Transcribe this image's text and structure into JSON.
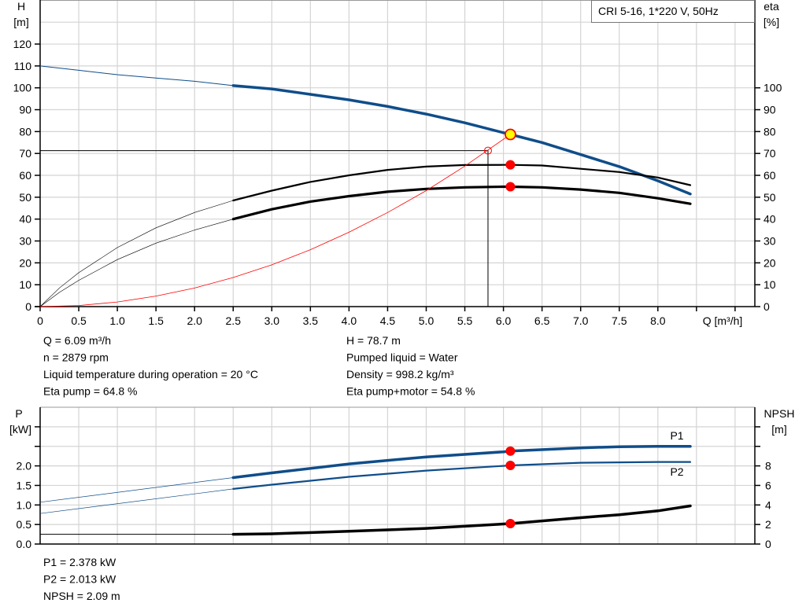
{
  "legend_box": "CRI 5-16, 1*220 V, 50Hz",
  "info_top": {
    "left": [
      "Q = 6.09 m³/h",
      "n = 2879 rpm",
      "Liquid temperature during operation = 20 °C",
      "Eta pump = 64.8 %"
    ],
    "right": [
      "H = 78.7 m",
      "Pumped liquid = Water",
      "Density = 998.2 kg/m³",
      "Eta pump+motor = 54.8 %"
    ]
  },
  "info_bottom": [
    "P1 = 2.378 kW",
    "P2 = 2.013 kW",
    "NPSH = 2.09 m"
  ],
  "colors": {
    "blue": "#0f4d8a",
    "black": "#000000",
    "red": "#ff0000",
    "yellow": "#ffff00",
    "grid": "#d4d4d4"
  },
  "chart_data": [
    {
      "type": "line",
      "xlabel": "Q [m³/h]",
      "ylabel_left": [
        "H",
        "[m]"
      ],
      "ylabel_right": [
        "eta",
        "[%]"
      ],
      "xlim": [
        0,
        9.26
      ],
      "ylim": [
        0,
        140
      ],
      "x_ticks": [
        "0",
        "0.5",
        "1.0",
        "1.5",
        "2.0",
        "2.5",
        "3.0",
        "3.5",
        "4.0",
        "4.5",
        "5.0",
        "5.5",
        "6.0",
        "6.5",
        "7.0",
        "7.5",
        "8.0"
      ],
      "y_ticks_left": [
        "0",
        "10",
        "20",
        "30",
        "40",
        "50",
        "60",
        "70",
        "80",
        "90",
        "100",
        "110",
        "120"
      ],
      "y_ticks_right": [
        "0",
        "10",
        "20",
        "30",
        "40",
        "50",
        "60",
        "70",
        "80",
        "90",
        "100"
      ],
      "grid": true,
      "operating_range_start_q": 2.5,
      "series": [
        {
          "key": "head",
          "axis": "left",
          "color": "#0f4d8a",
          "x": [
            0,
            0.5,
            1,
            1.5,
            2,
            2.5,
            3,
            3.5,
            4,
            4.5,
            5,
            5.5,
            6,
            6.09,
            6.5,
            7,
            7.5,
            8,
            8.42
          ],
          "y": [
            110,
            108,
            106,
            104.5,
            103,
            101,
            99.5,
            97,
            94.5,
            91.5,
            88,
            84,
            79.5,
            78.7,
            75,
            69.5,
            64,
            57.5,
            51.5
          ]
        },
        {
          "key": "eta-pump",
          "axis": "right",
          "color": "#000000",
          "x": [
            0,
            0.25,
            0.5,
            1,
            1.5,
            2,
            2.5,
            3,
            3.5,
            4,
            4.5,
            5,
            5.5,
            6,
            6.09,
            6.5,
            7,
            7.5,
            8,
            8.42
          ],
          "y": [
            0,
            8.5,
            15.5,
            27,
            36,
            43,
            48.5,
            53,
            57,
            60,
            62.5,
            64,
            64.7,
            64.8,
            64.8,
            64.5,
            63,
            61.5,
            59,
            55.5
          ]
        },
        {
          "key": "eta-pump-motor",
          "axis": "right",
          "color": "#000000",
          "x": [
            0,
            0.25,
            0.5,
            1,
            1.5,
            2,
            2.5,
            3,
            3.5,
            4,
            4.5,
            5,
            5.5,
            6,
            6.09,
            6.5,
            7,
            7.5,
            8,
            8.42
          ],
          "y": [
            0,
            6.5,
            12,
            21.5,
            29,
            35,
            40,
            44.5,
            48,
            50.5,
            52.5,
            53.8,
            54.5,
            54.8,
            54.8,
            54.5,
            53.5,
            52,
            49.5,
            47
          ]
        },
        {
          "key": "system-curve",
          "axis": "left",
          "color": "#ff0000",
          "x": [
            0,
            0.5,
            1,
            1.5,
            2,
            2.5,
            3,
            3.5,
            4,
            4.5,
            5,
            5.5,
            6.09
          ],
          "y": [
            0,
            0.5,
            2.1,
            4.8,
            8.5,
            13.3,
            19.1,
            26,
            34,
            43,
            53,
            64.2,
            78.7
          ]
        }
      ],
      "duty_point": {
        "q": 6.09,
        "h": 78.7,
        "eta_pump": 64.8,
        "eta_total": 54.8
      },
      "requested_point": {
        "q": 5.8,
        "h": 71.3
      }
    },
    {
      "type": "line",
      "ylabel_left": [
        "P",
        "[kW]"
      ],
      "ylabel_right": [
        "NPSH",
        "[m]"
      ],
      "xlim": [
        0,
        9.26
      ],
      "ylim_left": [
        0,
        3.5
      ],
      "ylim_right": [
        0,
        14
      ],
      "y_ticks_left": [
        "0.0",
        "0.5",
        "1.0",
        "1.5",
        "2.0"
      ],
      "y_ticks_right": [
        "0",
        "2",
        "4",
        "6",
        "8"
      ],
      "grid": true,
      "operating_range_start_q": 2.5,
      "series": [
        {
          "key": "P1",
          "name": "P1",
          "axis": "left",
          "color": "#0f4d8a",
          "x": [
            0,
            2.5,
            3,
            4,
            5,
            6,
            6.09,
            7,
            7.5,
            8,
            8.42
          ],
          "y": [
            1.07,
            1.7,
            1.82,
            2.05,
            2.23,
            2.36,
            2.378,
            2.46,
            2.49,
            2.5,
            2.5
          ]
        },
        {
          "key": "P2",
          "name": "P2",
          "axis": "left",
          "color": "#0f4d8a",
          "x": [
            0,
            2.5,
            3,
            4,
            5,
            6,
            6.09,
            7,
            7.5,
            8,
            8.42
          ],
          "y": [
            0.78,
            1.41,
            1.52,
            1.72,
            1.88,
            2.0,
            2.013,
            2.08,
            2.09,
            2.1,
            2.1
          ]
        },
        {
          "key": "NPSH",
          "axis": "right",
          "color": "#000000",
          "x": [
            0,
            2.5,
            3,
            4,
            5,
            6,
            6.09,
            7,
            7.5,
            8,
            8.42
          ],
          "y": [
            1.0,
            1.0,
            1.05,
            1.3,
            1.6,
            2.05,
            2.09,
            2.7,
            3.0,
            3.4,
            3.9
          ]
        }
      ],
      "duty_point": {
        "q": 6.09,
        "p1": 2.378,
        "p2": 2.013,
        "npsh": 2.09
      }
    }
  ]
}
